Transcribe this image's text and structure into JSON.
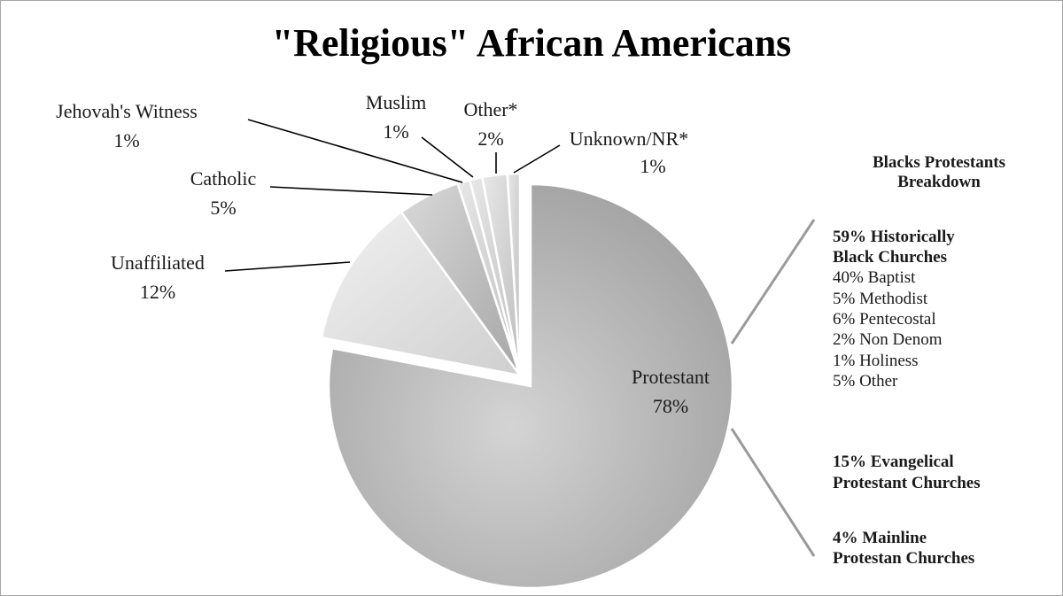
{
  "chart_data": {
    "type": "pie",
    "title": "\"Religious\" African Americans",
    "slices": [
      {
        "name": "Protestant",
        "value": 78,
        "label": "78%"
      },
      {
        "name": "Unaffiliated",
        "value": 12,
        "label": "12%"
      },
      {
        "name": "Catholic",
        "value": 5,
        "label": "5%"
      },
      {
        "name": "Jehovah's Witness",
        "value": 1,
        "label": "1%"
      },
      {
        "name": "Muslim",
        "value": 1,
        "label": "1%"
      },
      {
        "name": "Other*",
        "value": 2,
        "label": "2%"
      },
      {
        "name": "Unknown/NR*",
        "value": 1,
        "label": "1%"
      }
    ],
    "exploded_slice": "Protestant"
  },
  "breakdown": {
    "heading": [
      "Blacks  Protestants",
      "Breakdown"
    ],
    "historically_black": {
      "heading": [
        "59% Historically",
        "Black Churches"
      ],
      "items": [
        "40% Baptist",
        "5% Methodist",
        "6% Pentecostal",
        "2% Non Denom",
        "1% Holiness",
        "5% Other"
      ]
    },
    "evangelical": [
      "15% Evangelical",
      "Protestant Churches"
    ],
    "mainline": [
      "4% Mainline",
      "Protestan Churches"
    ]
  }
}
